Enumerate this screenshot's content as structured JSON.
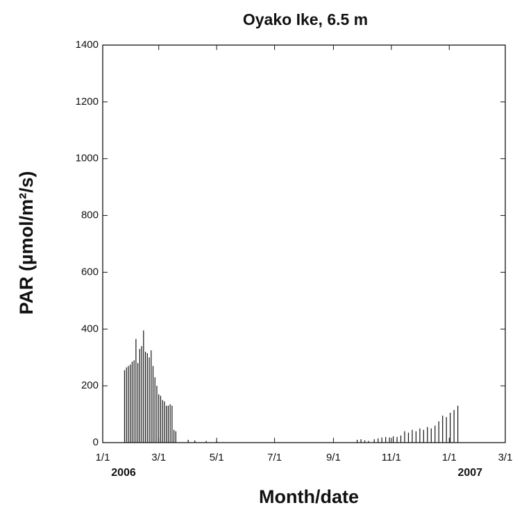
{
  "chart_data": {
    "type": "bar",
    "title": "Oyako Ike, 6.5 m",
    "x_label": "Month/date",
    "y_label": "PAR (µmol/m²/s)",
    "color": "#111111",
    "x": [
      "2006-01-24",
      "2006-01-26",
      "2006-01-28",
      "2006-01-30",
      "2006-02-01",
      "2006-02-03",
      "2006-02-05",
      "2006-02-07",
      "2006-02-09",
      "2006-02-11",
      "2006-02-13",
      "2006-02-15",
      "2006-02-17",
      "2006-02-19",
      "2006-02-21",
      "2006-02-23",
      "2006-02-25",
      "2006-02-27",
      "2006-03-01",
      "2006-03-03",
      "2006-03-05",
      "2006-03-07",
      "2006-03-09",
      "2006-03-11",
      "2006-03-13",
      "2006-03-15",
      "2006-03-17",
      "2006-03-19",
      "2006-04-01",
      "2006-04-08",
      "2006-04-20",
      "2006-05-01",
      "2006-09-26",
      "2006-09-30",
      "2006-10-04",
      "2006-10-08",
      "2006-10-14",
      "2006-10-18",
      "2006-10-22",
      "2006-10-26",
      "2006-10-30",
      "2006-11-03",
      "2006-11-07",
      "2006-11-11",
      "2006-11-15",
      "2006-11-19",
      "2006-11-23",
      "2006-11-27",
      "2006-12-01",
      "2006-12-05",
      "2006-12-09",
      "2006-12-13",
      "2006-12-17",
      "2006-12-21",
      "2006-12-25",
      "2006-12-29",
      "2007-01-02",
      "2007-01-06",
      "2007-01-10"
    ],
    "values": [
      255,
      265,
      270,
      275,
      285,
      290,
      365,
      280,
      330,
      340,
      395,
      320,
      315,
      300,
      325,
      270,
      230,
      200,
      170,
      165,
      150,
      145,
      130,
      130,
      135,
      130,
      45,
      40,
      10,
      8,
      6,
      5,
      10,
      12,
      8,
      6,
      12,
      15,
      18,
      20,
      18,
      22,
      20,
      25,
      40,
      35,
      45,
      40,
      50,
      45,
      55,
      50,
      60,
      75,
      95,
      90,
      105,
      115,
      130
    ],
    "xlim": [
      "2006-01-01",
      "2007-03-01"
    ],
    "xticks": [
      {
        "value": "2006-01-01",
        "label": "1/1"
      },
      {
        "value": "2006-03-01",
        "label": "3/1"
      },
      {
        "value": "2006-05-01",
        "label": "5/1"
      },
      {
        "value": "2006-07-01",
        "label": "7/1"
      },
      {
        "value": "2006-09-01",
        "label": "9/1"
      },
      {
        "value": "2006-11-01",
        "label": "11/1"
      },
      {
        "value": "2007-01-01",
        "label": "1/1"
      },
      {
        "value": "2007-03-01",
        "label": "3/1"
      }
    ],
    "year_labels": [
      {
        "value": "2006-01-01",
        "label": "2006"
      },
      {
        "value": "2007-01-01",
        "label": "2007"
      }
    ],
    "ylim": [
      0,
      1400
    ],
    "yticks": [
      0,
      200,
      400,
      600,
      800,
      1000,
      1200,
      1400
    ]
  }
}
